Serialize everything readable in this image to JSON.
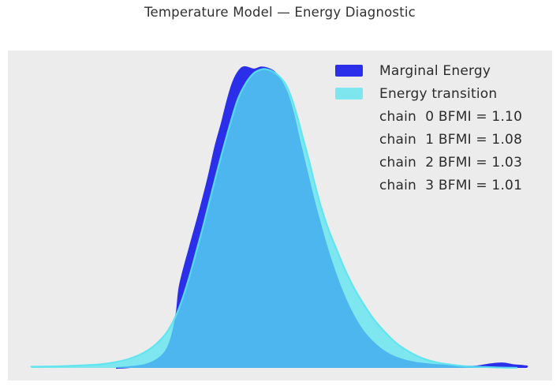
{
  "figure": {
    "title": "Temperature Model — Energy Diagnostic"
  },
  "legend": {
    "position": "upper right",
    "rows": [
      {
        "label": "Marginal Energy",
        "swatch": "#2b2fe9",
        "swatch_opacity": 1
      },
      {
        "label": "Energy transition",
        "swatch": "#5ae4f0",
        "swatch_opacity": 0.75
      },
      {
        "label": "chain  0 BFMI = 1.10"
      },
      {
        "label": "chain  1 BFMI = 1.08"
      },
      {
        "label": "chain  2 BFMI = 1.03"
      },
      {
        "label": "chain  3 BFMI = 1.01"
      }
    ]
  },
  "chart_data": {
    "type": "area",
    "title": "Temperature Model — Energy Diagnostic",
    "subtitle": "",
    "xlabel": "",
    "ylabel": "",
    "axes_ticks_visible": false,
    "grid": false,
    "plot_background": "#ececec",
    "legend_position": "upper right",
    "bfmi_by_chain": [
      {
        "chain": 0,
        "bfmi": 1.1
      },
      {
        "chain": 1,
        "bfmi": 1.08
      },
      {
        "chain": 2,
        "bfmi": 1.03
      },
      {
        "chain": 3,
        "bfmi": 1.01
      }
    ],
    "note": "Kernel density estimates; x is plot-relative position 0-1 (no axis labels shown), density normalized to peak = 1",
    "series": [
      {
        "name": "Marginal Energy",
        "color": "#2b2fe9",
        "fill_opacity": 1.0,
        "x": [
          0.2,
          0.225,
          0.254,
          0.275,
          0.29,
          0.301,
          0.31,
          0.316,
          0.333,
          0.351,
          0.368,
          0.381,
          0.393,
          0.404,
          0.414,
          0.425,
          0.435,
          0.452,
          0.465,
          0.478,
          0.49,
          0.501,
          0.513,
          0.525,
          0.536,
          0.549,
          0.562,
          0.577,
          0.593,
          0.61,
          0.629,
          0.649,
          0.67,
          0.693,
          0.717,
          0.746,
          0.78,
          0.812,
          0.841,
          0.862,
          0.887,
          0.91,
          0.93,
          0.945,
          0.954
        ],
        "density": [
          0.0,
          0.003,
          0.011,
          0.029,
          0.055,
          0.103,
          0.182,
          0.274,
          0.393,
          0.511,
          0.63,
          0.735,
          0.814,
          0.893,
          0.951,
          0.988,
          1.0,
          0.992,
          0.999,
          0.995,
          0.983,
          0.957,
          0.914,
          0.841,
          0.754,
          0.656,
          0.559,
          0.458,
          0.361,
          0.274,
          0.195,
          0.132,
          0.087,
          0.053,
          0.032,
          0.018,
          0.011,
          0.007,
          0.004,
          0.005,
          0.012,
          0.015,
          0.009,
          0.007,
          0.005
        ]
      },
      {
        "name": "Energy transition",
        "color": "#5ae4f0",
        "fill_opacity": 0.75,
        "x": [
          0.043,
          0.087,
          0.13,
          0.171,
          0.203,
          0.229,
          0.252,
          0.272,
          0.291,
          0.306,
          0.319,
          0.332,
          0.345,
          0.358,
          0.371,
          0.384,
          0.397,
          0.41,
          0.423,
          0.438,
          0.452,
          0.465,
          0.475,
          0.487,
          0.5,
          0.512,
          0.523,
          0.533,
          0.543,
          0.554,
          0.564,
          0.575,
          0.588,
          0.603,
          0.619,
          0.636,
          0.654,
          0.672,
          0.693,
          0.714,
          0.738,
          0.762,
          0.788,
          0.814,
          0.843,
          0.877,
          0.91,
          0.935
        ],
        "density": [
          0.004,
          0.005,
          0.008,
          0.012,
          0.021,
          0.034,
          0.053,
          0.079,
          0.116,
          0.163,
          0.221,
          0.295,
          0.379,
          0.466,
          0.559,
          0.651,
          0.738,
          0.822,
          0.896,
          0.949,
          0.98,
          0.992,
          0.993,
          0.985,
          0.967,
          0.938,
          0.888,
          0.827,
          0.759,
          0.685,
          0.611,
          0.538,
          0.466,
          0.398,
          0.329,
          0.266,
          0.211,
          0.163,
          0.119,
          0.082,
          0.053,
          0.032,
          0.018,
          0.011,
          0.005,
          0.003,
          0.001,
          0.0005
        ]
      }
    ]
  }
}
